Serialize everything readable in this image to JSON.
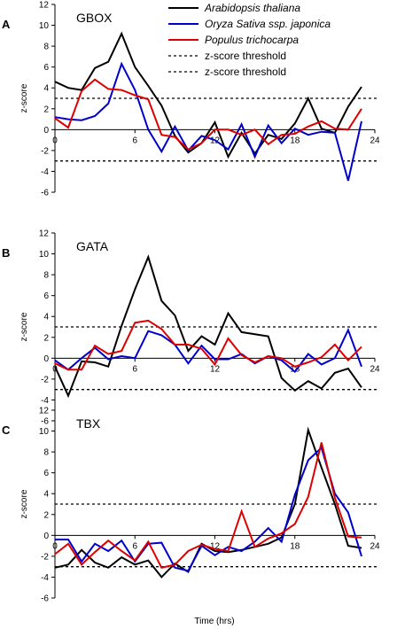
{
  "legend": {
    "entries": [
      {
        "label": "Arabidopsis thaliana",
        "style": "solid",
        "color": "#000000",
        "italic": true
      },
      {
        "label": "Oryza Sativa ssp. japonica",
        "style": "solid",
        "color": "#0000cc",
        "italic": true
      },
      {
        "label": "Populus trichocarpa",
        "style": "solid",
        "color": "#dd0000",
        "italic": true
      },
      {
        "label": "z-score threshold",
        "style": "dotted",
        "color": "#000000",
        "italic": false
      },
      {
        "label": "z-score threshold",
        "style": "dotted",
        "color": "#000000",
        "italic": false
      }
    ],
    "placement": "top-right"
  },
  "colors": {
    "arabidopsis": "#000000",
    "oryza": "#0000cc",
    "populus": "#dd0000",
    "threshold": "#000000"
  },
  "shared_xlabel": "Time (hrs)",
  "chart_data": [
    {
      "panel_letter": "A",
      "title": "GBOX",
      "type": "line",
      "xlabel": "",
      "ylabel": "z-score",
      "xlim": [
        0,
        24
      ],
      "ylim": [
        -6,
        12
      ],
      "xticks": [
        0,
        6,
        12,
        18,
        24
      ],
      "yticks": [
        -6,
        -4,
        -2,
        0,
        2,
        4,
        6,
        8,
        10,
        12
      ],
      "thresholds": [
        3,
        -3
      ],
      "grid": false,
      "series": [
        {
          "name": "Arabidopsis thaliana",
          "color": "#000000",
          "x": [
            0,
            1,
            2,
            3,
            4,
            5,
            6,
            7,
            8,
            9,
            10,
            11,
            12,
            13,
            14,
            15,
            16,
            17,
            18,
            19,
            20,
            21,
            22,
            23
          ],
          "y": [
            4.6,
            4.0,
            3.8,
            5.9,
            6.5,
            9.2,
            6.0,
            4.2,
            2.3,
            -0.6,
            -2.2,
            -1.3,
            0.7,
            -2.6,
            -0.3,
            -2.3,
            -0.5,
            -0.9,
            0.6,
            3.0,
            0.1,
            -0.3,
            2.2,
            4.1
          ]
        },
        {
          "name": "Oryza Sativa ssp. japonica",
          "color": "#0000cc",
          "x": [
            0,
            1,
            2,
            3,
            4,
            5,
            6,
            7,
            8,
            9,
            10,
            11,
            12,
            13,
            14,
            15,
            16,
            17,
            18,
            19,
            20,
            21,
            22,
            23
          ],
          "y": [
            1.2,
            1.0,
            0.9,
            1.3,
            2.5,
            6.3,
            3.8,
            0.0,
            -2.1,
            0.3,
            -2.0,
            -0.6,
            -1.0,
            -1.9,
            0.5,
            -2.6,
            0.4,
            -1.3,
            0.1,
            -0.5,
            -0.2,
            -0.3,
            -4.9,
            0.8
          ]
        },
        {
          "name": "Populus trichocarpa",
          "color": "#dd0000",
          "x": [
            0,
            1,
            2,
            3,
            4,
            5,
            6,
            7,
            8,
            9,
            10,
            11,
            12,
            13,
            14,
            15,
            16,
            17,
            18,
            19,
            20,
            21,
            22,
            23
          ],
          "y": [
            1.1,
            0.2,
            3.7,
            4.8,
            3.9,
            3.8,
            3.3,
            2.9,
            -0.5,
            -0.7,
            -1.9,
            -1.3,
            0.0,
            0.0,
            -0.5,
            0.0,
            -1.4,
            -0.5,
            -0.4,
            0.3,
            0.8,
            0.1,
            0.0,
            2.0
          ]
        }
      ]
    },
    {
      "panel_letter": "B",
      "title": "GATA",
      "type": "line",
      "xlabel": "",
      "ylabel": "z-score",
      "xlim": [
        0,
        24
      ],
      "ylim": [
        -6,
        12
      ],
      "xticks": [
        0,
        6,
        12,
        18,
        24
      ],
      "yticks": [
        -6,
        -4,
        -2,
        0,
        2,
        4,
        6,
        8,
        10,
        12
      ],
      "thresholds": [
        3,
        -3
      ],
      "grid": false,
      "series": [
        {
          "name": "Arabidopsis thaliana",
          "color": "#000000",
          "x": [
            0,
            1,
            2,
            3,
            4,
            5,
            6,
            7,
            8,
            9,
            10,
            11,
            12,
            13,
            14,
            15,
            16,
            17,
            18,
            19,
            20,
            21,
            22,
            23
          ],
          "y": [
            -0.8,
            -3.6,
            -0.3,
            -0.4,
            -0.8,
            3.1,
            6.6,
            9.7,
            5.5,
            4.1,
            0.7,
            2.1,
            1.3,
            4.3,
            2.5,
            2.3,
            2.1,
            -1.9,
            -3.1,
            -2.2,
            -2.9,
            -1.4,
            -1.0,
            -2.8
          ]
        },
        {
          "name": "Oryza Sativa ssp. japonica",
          "color": "#0000cc",
          "x": [
            0,
            1,
            2,
            3,
            4,
            5,
            6,
            7,
            8,
            9,
            10,
            11,
            12,
            13,
            14,
            15,
            16,
            17,
            18,
            19,
            20,
            21,
            22,
            23
          ],
          "y": [
            -0.2,
            -1.1,
            0.0,
            1.0,
            -0.1,
            0.2,
            0.0,
            2.6,
            2.2,
            1.3,
            -0.5,
            1.2,
            -0.1,
            -0.1,
            0.4,
            -0.5,
            0.2,
            -0.2,
            -1.3,
            0.4,
            -0.6,
            0.0,
            2.7,
            -0.8
          ]
        },
        {
          "name": "Populus trichocarpa",
          "color": "#dd0000",
          "x": [
            0,
            1,
            2,
            3,
            4,
            5,
            6,
            7,
            8,
            9,
            10,
            11,
            12,
            13,
            14,
            15,
            16,
            17,
            18,
            19,
            20,
            21,
            22,
            23
          ],
          "y": [
            -0.5,
            -1.1,
            -1.1,
            1.2,
            0.4,
            0.7,
            3.4,
            3.6,
            2.8,
            1.3,
            1.3,
            0.9,
            -0.6,
            1.9,
            0.3,
            -0.4,
            0.2,
            0.0,
            -0.8,
            -0.4,
            0.1,
            1.3,
            -0.2,
            1.1
          ]
        }
      ]
    },
    {
      "panel_letter": "C",
      "title": "TBX",
      "type": "line",
      "xlabel": "Time (hrs)",
      "ylabel": "z-score",
      "xlim": [
        0,
        24
      ],
      "ylim": [
        -6,
        12
      ],
      "xticks": [
        0,
        6,
        12,
        18,
        24
      ],
      "yticks": [
        -6,
        -4,
        -2,
        0,
        2,
        4,
        6,
        8,
        10,
        12
      ],
      "thresholds": [
        3,
        -3
      ],
      "grid": false,
      "series": [
        {
          "name": "Arabidopsis thaliana",
          "color": "#000000",
          "x": [
            0,
            1,
            2,
            3,
            4,
            5,
            6,
            7,
            8,
            9,
            10,
            11,
            12,
            13,
            14,
            15,
            16,
            17,
            18,
            19,
            20,
            21,
            22,
            23
          ],
          "y": [
            -3.1,
            -2.8,
            -1.4,
            -2.6,
            -3.1,
            -2.1,
            -2.8,
            -2.4,
            -4.0,
            -2.7,
            -3.5,
            -0.8,
            -1.5,
            -1.6,
            -1.4,
            -1.1,
            -0.8,
            -0.2,
            3.0,
            10.1,
            6.5,
            3.0,
            -1.0,
            -1.2
          ]
        },
        {
          "name": "Oryza Sativa ssp. japonica",
          "color": "#0000cc",
          "x": [
            0,
            1,
            2,
            3,
            4,
            5,
            6,
            7,
            8,
            9,
            10,
            11,
            12,
            13,
            14,
            15,
            16,
            17,
            18,
            19,
            20,
            21,
            22,
            23
          ],
          "y": [
            -0.4,
            -0.4,
            -2.5,
            -0.8,
            -1.5,
            -0.5,
            -2.5,
            -0.8,
            -0.7,
            -3.1,
            -3.4,
            -1.0,
            -1.9,
            -1.1,
            -1.5,
            -0.6,
            0.7,
            -0.6,
            3.9,
            7.2,
            8.4,
            4.0,
            2.2,
            -2.0
          ]
        },
        {
          "name": "Populus trichocarpa",
          "color": "#dd0000",
          "x": [
            0,
            1,
            2,
            3,
            4,
            5,
            6,
            7,
            8,
            9,
            10,
            11,
            12,
            13,
            14,
            15,
            16,
            17,
            18,
            19,
            20,
            21,
            22,
            23
          ],
          "y": [
            -1.8,
            -0.8,
            -2.8,
            -1.6,
            -0.5,
            -1.5,
            -2.4,
            -0.6,
            -3.1,
            -2.8,
            -1.5,
            -0.9,
            -1.3,
            -1.5,
            2.3,
            -1.1,
            -0.3,
            0.2,
            1.1,
            3.7,
            8.9,
            3.6,
            -0.1,
            -0.2
          ]
        }
      ]
    }
  ]
}
